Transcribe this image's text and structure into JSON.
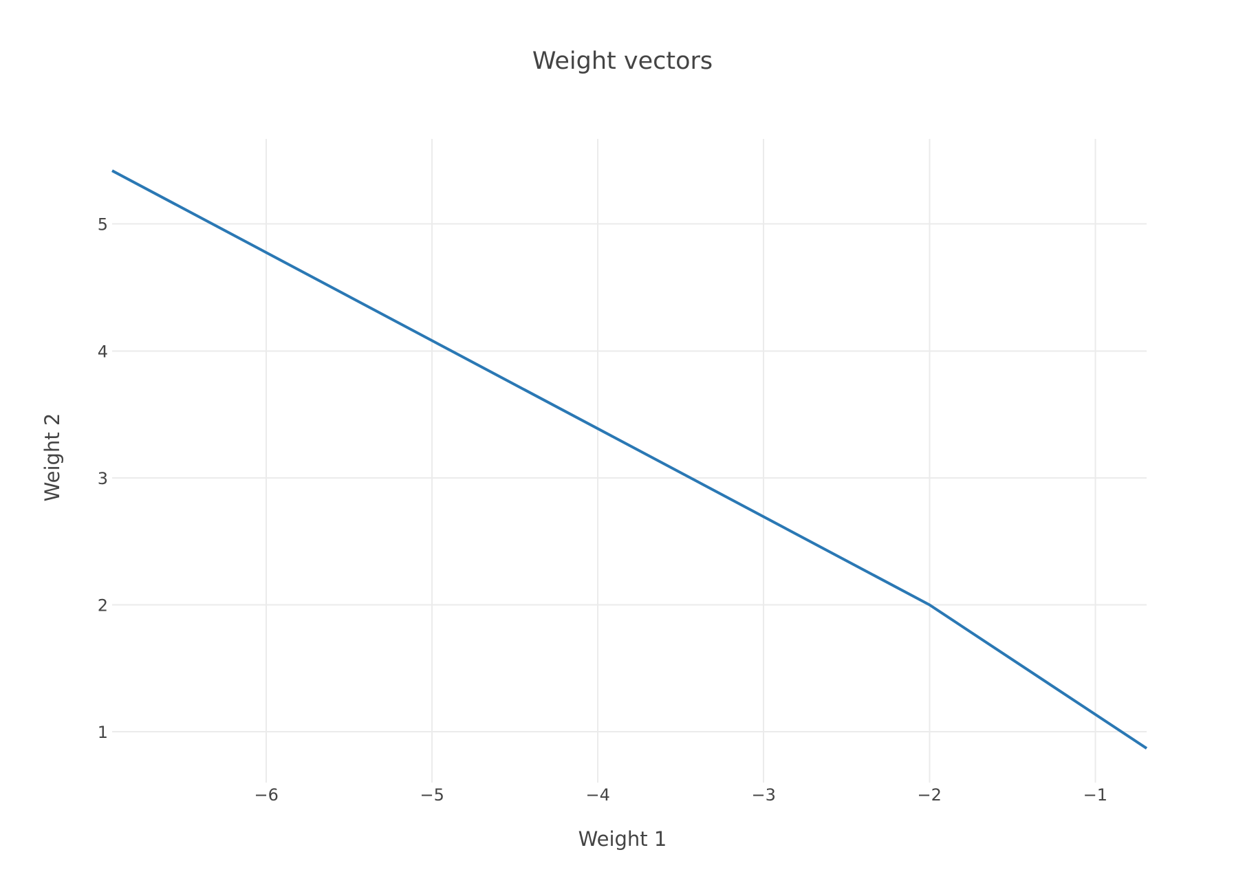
{
  "chart_data": {
    "type": "line",
    "title": "Weight vectors",
    "xlabel": "Weight 1",
    "ylabel": "Weight 2",
    "xlim": [
      -6.93,
      -0.69
    ],
    "ylim": [
      0.6,
      5.67
    ],
    "x_ticks": [
      -6,
      -5,
      -4,
      -3,
      -2,
      -1
    ],
    "y_ticks": [
      1,
      2,
      3,
      4,
      5
    ],
    "x_tick_labels": [
      "−6",
      "−5",
      "−4",
      "−3",
      "−2",
      "−1"
    ],
    "y_tick_labels": [
      "1",
      "2",
      "3",
      "4",
      "5"
    ],
    "grid": true,
    "legend": false,
    "series": [
      {
        "color": "#2a78b4",
        "x": [
          -6.93,
          -2.0,
          -0.69
        ],
        "y": [
          5.42,
          2.0,
          0.87
        ]
      }
    ]
  }
}
